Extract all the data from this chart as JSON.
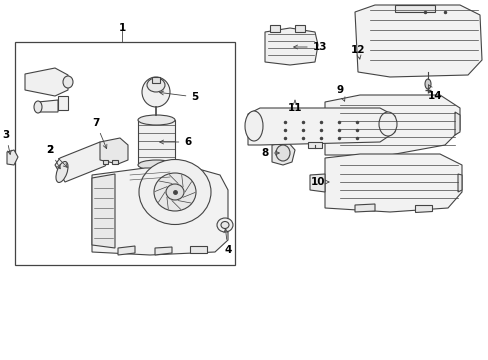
{
  "bg_color": "#ffffff",
  "line_color": "#444444",
  "fig_width": 4.89,
  "fig_height": 3.6,
  "dpi": 100
}
